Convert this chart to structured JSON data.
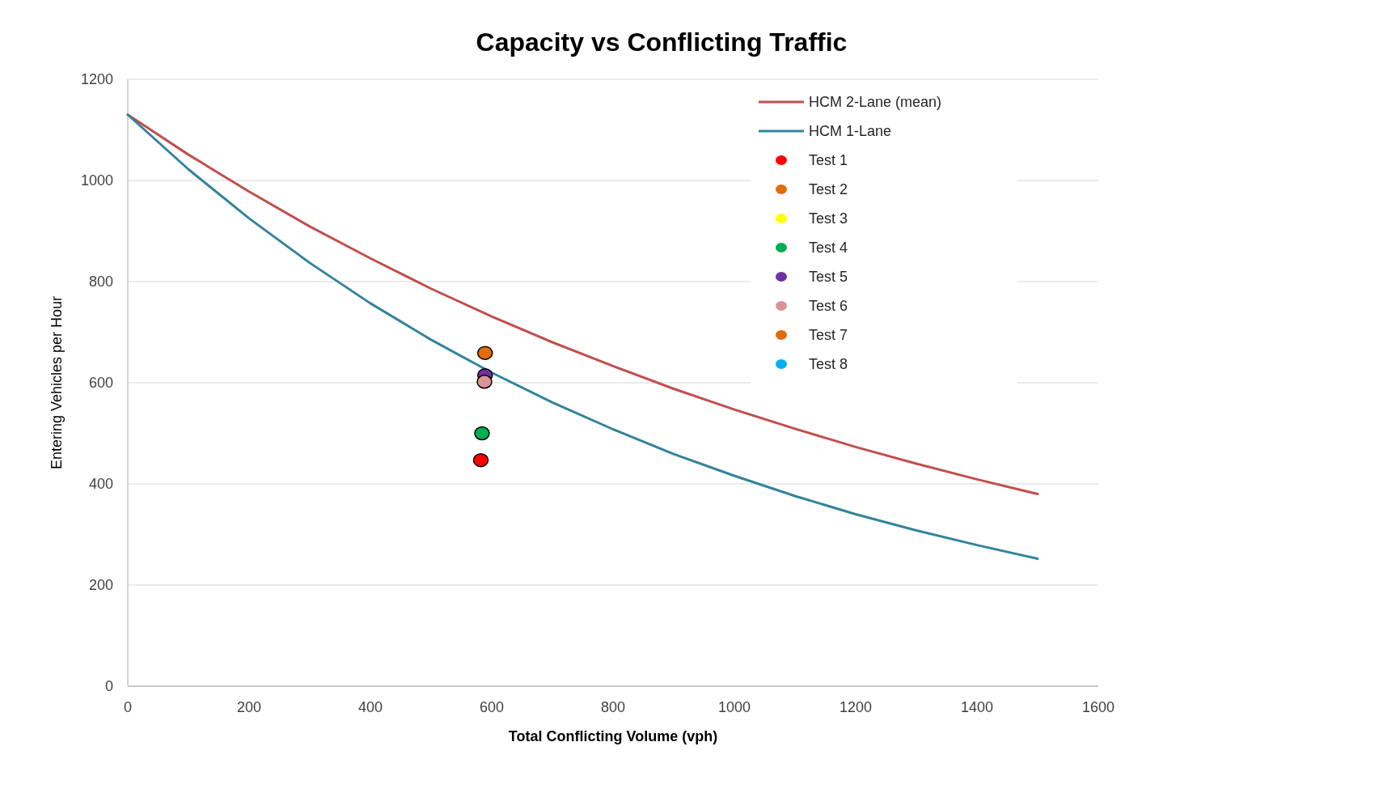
{
  "chart_data": {
    "type": "line",
    "title": "Capacity vs Conflicting Traffic",
    "xlabel": "Total Conflicting Volume (vph)",
    "ylabel": "Entering Vehicles per Hour",
    "xlim": [
      0,
      1600
    ],
    "xticks": [
      0,
      200,
      400,
      600,
      800,
      1000,
      1200,
      1400,
      1600
    ],
    "ylim": [
      0,
      1200
    ],
    "yticks": [
      0,
      200,
      400,
      600,
      800,
      1000,
      1200
    ],
    "grid": "y",
    "legend": "top right",
    "marker": "none",
    "line_style": "solid",
    "series": [
      {
        "name": "HCM 2-Lane (mean)",
        "color": "#c0504d",
        "x": [
          0,
          100,
          200,
          300,
          400,
          500,
          600,
          700,
          800,
          900,
          1000,
          1100,
          1200,
          1300,
          1400,
          1500
        ],
        "values": [
          1130,
          1051,
          978,
          909,
          846,
          786,
          731,
          680,
          633,
          588,
          547,
          509,
          473,
          440,
          409,
          380
        ]
      },
      {
        "name": "HCM 1-Lane",
        "color": "#31849b",
        "x": [
          0,
          100,
          200,
          300,
          400,
          500,
          600,
          700,
          800,
          900,
          1000,
          1100,
          1200,
          1300,
          1400,
          1500
        ],
        "values": [
          1130,
          1022,
          925,
          837,
          757,
          685,
          620,
          561,
          508,
          459,
          416,
          376,
          340,
          308,
          279,
          252
        ]
      },
      {
        "name": "Test 1",
        "color": "#ff0000",
        "type": "scatter",
        "marker": "circle",
        "x": [
          582
        ],
        "values": [
          447
        ]
      },
      {
        "name": "Test 2",
        "color": "#e36c09",
        "type": "scatter",
        "marker": "circle",
        "x": [
          null
        ],
        "values": [
          null
        ]
      },
      {
        "name": "Test 3",
        "color": "#ffff00",
        "type": "scatter",
        "marker": "circle",
        "x": [
          null
        ],
        "values": [
          null
        ]
      },
      {
        "name": "Test 4",
        "color": "#00b050",
        "type": "scatter",
        "marker": "circle",
        "x": [
          584
        ],
        "values": [
          500
        ]
      },
      {
        "name": "Test 5",
        "color": "#7030a0",
        "type": "scatter",
        "marker": "circle",
        "x": [
          589
        ],
        "values": [
          615
        ]
      },
      {
        "name": "Test 6",
        "color": "#d99594",
        "type": "scatter",
        "marker": "circle",
        "x": [
          588
        ],
        "values": [
          602
        ]
      },
      {
        "name": "Test 7",
        "color": "#e36c09",
        "type": "scatter",
        "marker": "circle",
        "x": [
          589
        ],
        "values": [
          659
        ]
      },
      {
        "name": "Test 8",
        "color": "#00b0f0",
        "type": "scatter",
        "marker": "circle",
        "x": [
          null
        ],
        "values": [
          null
        ]
      }
    ]
  }
}
